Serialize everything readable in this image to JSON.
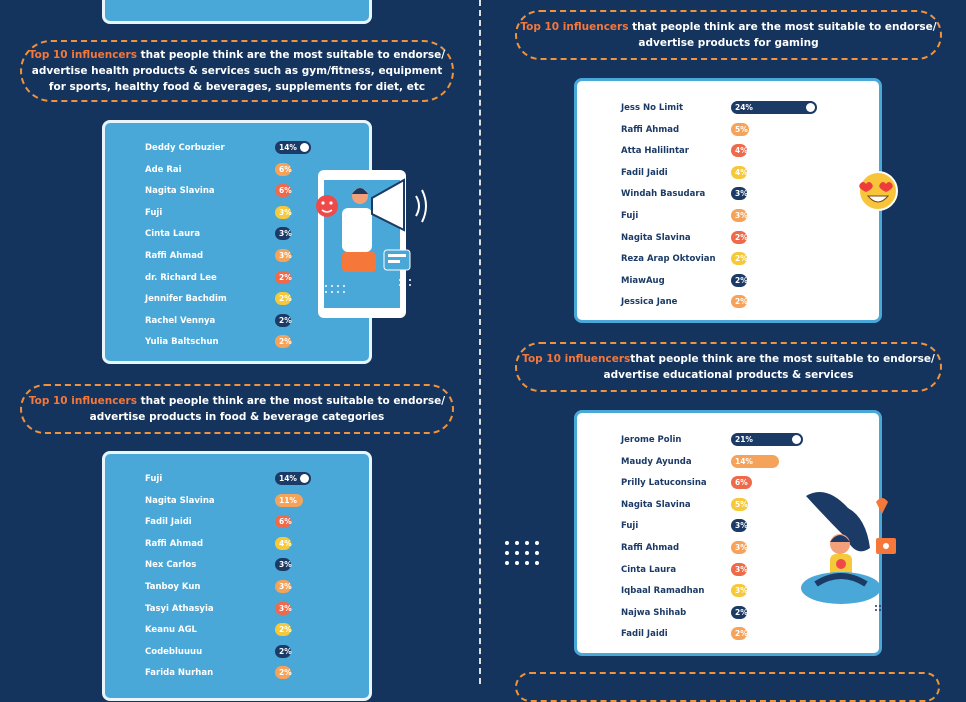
{
  "sections": [
    {
      "highlight": "Top 10 influencers",
      "caption": " that people think are the most suitable to endorse/ advertise health products & services such as gym/fitness, equipment for sports, healthy food &  beverages, supplements for diet, etc"
    },
    {
      "highlight": "Top 10 influencers",
      "caption": " that people think are the most suitable to endorse/ advertise products in food & beverage categories"
    },
    {
      "highlight": "Top 10 influencers",
      "caption": " that people think are the most suitable to endorse/ advertise products for gaming"
    },
    {
      "highlight": "Top 10 influencers",
      "caption": "that people think are the most suitable to endorse/ advertise educational products & services"
    }
  ],
  "colors": {
    "navy": "#1b3a66",
    "orange": "#f5773a",
    "light_orange": "#f5a35a",
    "red_orange": "#ee6a4a",
    "yellow": "#f5c93a",
    "background": "#14345e",
    "panel_blue": "#4aa8d8"
  },
  "chart_data": [
    {
      "type": "bar",
      "categories": [
        "Deddy Corbuzier",
        "Ade Rai",
        "Nagita Slavina",
        "Fuji",
        "Cinta Laura",
        "Raffi Ahmad",
        "dr. Richard Lee",
        "Jennifer Bachdim",
        "Rachel Vennya",
        "Yulia Baltschun"
      ],
      "values": [
        14,
        6,
        6,
        3,
        3,
        3,
        2,
        2,
        2,
        2
      ],
      "labels": [
        "14%",
        "6%",
        "6%",
        "3%",
        "3%",
        "3%",
        "2%",
        "2%",
        "2%",
        "2%"
      ],
      "bar_colors": [
        "navy",
        "light_orange",
        "red_orange",
        "yellow",
        "navy",
        "light_orange",
        "red_orange",
        "yellow",
        "navy",
        "light_orange"
      ]
    },
    {
      "type": "bar",
      "categories": [
        "Fuji",
        "Nagita Slavina",
        "Fadil Jaidi",
        "Raffi Ahmad",
        "Nex Carlos",
        "Tanboy Kun",
        "Tasyi Athasyia",
        "Keanu AGL",
        "Codebluuuu",
        "Farida Nurhan"
      ],
      "values": [
        14,
        11,
        6,
        4,
        3,
        3,
        3,
        2,
        2,
        2
      ],
      "labels": [
        "14%",
        "11%",
        "6%",
        "4%",
        "3%",
        "3%",
        "3%",
        "2%",
        "2%",
        "2%"
      ],
      "bar_colors": [
        "navy",
        "light_orange",
        "red_orange",
        "yellow",
        "navy",
        "light_orange",
        "red_orange",
        "yellow",
        "navy",
        "light_orange"
      ]
    },
    {
      "type": "bar",
      "categories": [
        "Jess No Limit",
        "Raffi Ahmad",
        "Atta Halilintar",
        "Fadil Jaidi",
        "Windah Basudara",
        "Fuji",
        "Nagita Slavina",
        "Reza Arap Oktovian",
        "MiawAug",
        "Jessica Jane"
      ],
      "values": [
        24,
        5,
        4,
        4,
        3,
        3,
        2,
        2,
        2,
        2
      ],
      "labels": [
        "24%",
        "5%",
        "4%",
        "4%",
        "3%",
        "3%",
        "2%",
        "2%",
        "2%",
        "2%"
      ],
      "bar_colors": [
        "navy",
        "light_orange",
        "red_orange",
        "yellow",
        "navy",
        "light_orange",
        "red_orange",
        "yellow",
        "navy",
        "light_orange"
      ]
    },
    {
      "type": "bar",
      "categories": [
        "Jerome Polin",
        "Maudy Ayunda",
        "Prilly Latuconsina",
        "Nagita Slavina",
        "Fuji",
        "Raffi Ahmad",
        "Cinta Laura",
        "Iqbaal Ramadhan",
        "Najwa Shihab",
        "Fadil Jaidi"
      ],
      "values": [
        21,
        14,
        6,
        5,
        3,
        3,
        3,
        3,
        2,
        2
      ],
      "labels": [
        "21%",
        "14%",
        "6%",
        "5%",
        "3%",
        "3%",
        "3%",
        "3%",
        "2%",
        "2%"
      ],
      "bar_colors": [
        "navy",
        "light_orange",
        "red_orange",
        "yellow",
        "navy",
        "light_orange",
        "red_orange",
        "yellow",
        "navy",
        "light_orange"
      ]
    }
  ]
}
